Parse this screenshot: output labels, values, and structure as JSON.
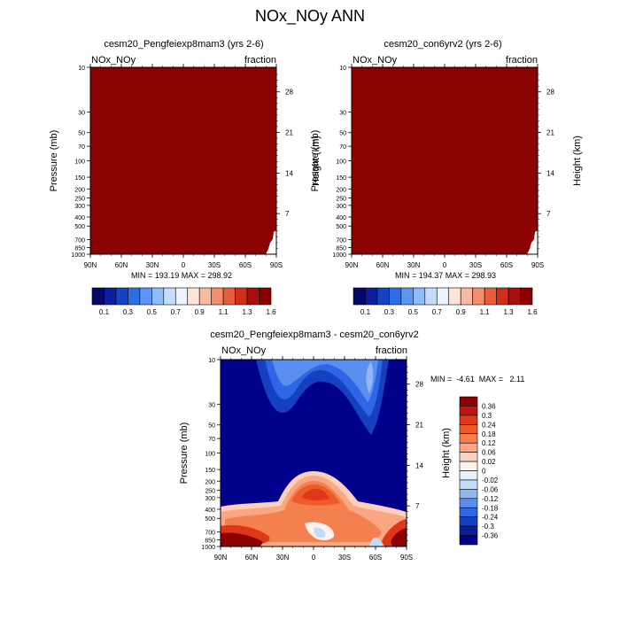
{
  "page_title": "NOx_NOy ANN",
  "colors": {
    "dark_red": "#8b0000",
    "deep_blue": "#00008b"
  },
  "chart_data": [
    {
      "type": "heatmap",
      "title": "cesm20_Pengfeiexp8mam3 (yrs 2-6)",
      "left_label": "NOx_NOy",
      "right_label": "fraction",
      "ylabel": "Pressure (mb)",
      "ylabel_right": "Height (km)",
      "x_ticks": [
        "90N",
        "60N",
        "30N",
        "0",
        "30S",
        "60S",
        "90S"
      ],
      "y_ticks": [
        10,
        30,
        50,
        70,
        100,
        150,
        200,
        250,
        300,
        400,
        500,
        700,
        850,
        1000
      ],
      "y_ticks_right": [
        28,
        21,
        14,
        7
      ],
      "stats": "MIN = 193.19  MAX = 298.92",
      "fill": "field entirely in top color class (>1.6)",
      "colorbar": {
        "levels": [
          "0.1",
          "0.3",
          "0.5",
          "0.7",
          "0.9",
          "1.1",
          "1.3",
          "1.6"
        ],
        "colors": [
          "#08086b",
          "#0a1fa0",
          "#1642c8",
          "#2f6de6",
          "#5b95f5",
          "#8dbcfa",
          "#c3dcfb",
          "#eef3fb",
          "#fde6d8",
          "#f9bba0",
          "#f28e6e",
          "#e95c3c",
          "#d0301a",
          "#a8100d",
          "#8b0000"
        ]
      }
    },
    {
      "type": "heatmap",
      "title": "cesm20_con6yrv2 (yrs 2-6)",
      "left_label": "NOx_NOy",
      "right_label": "fraction",
      "ylabel": "Pressure (mb)",
      "ylabel_right": "Height (km)",
      "x_ticks": [
        "90N",
        "60N",
        "30N",
        "0",
        "30S",
        "60S",
        "90S"
      ],
      "y_ticks": [
        10,
        30,
        50,
        70,
        100,
        150,
        200,
        250,
        300,
        400,
        500,
        700,
        850,
        1000
      ],
      "y_ticks_right": [
        28,
        21,
        14,
        7
      ],
      "stats": "MIN = 194.37  MAX = 298.93",
      "fill": "field entirely in top color class (>1.6)",
      "colorbar": {
        "levels": [
          "0.1",
          "0.3",
          "0.5",
          "0.7",
          "0.9",
          "1.1",
          "1.3",
          "1.6"
        ],
        "colors": [
          "#08086b",
          "#0a1fa0",
          "#1642c8",
          "#2f6de6",
          "#5b95f5",
          "#8dbcfa",
          "#c3dcfb",
          "#eef3fb",
          "#fde6d8",
          "#f9bba0",
          "#f28e6e",
          "#e95c3c",
          "#d0301a",
          "#a8100d",
          "#8b0000"
        ]
      }
    },
    {
      "type": "heatmap",
      "title": "cesm20_Pengfeiexp8mam3 - cesm20_con6yrv2",
      "left_label": "NOx_NOy",
      "right_label": "fraction",
      "ylabel": "Pressure (mb)",
      "ylabel_right": "Height (km)",
      "x_ticks": [
        "90N",
        "60N",
        "30N",
        "0",
        "30S",
        "60S",
        "90S"
      ],
      "y_ticks": [
        10,
        30,
        50,
        70,
        100,
        150,
        200,
        250,
        300,
        400,
        500,
        700,
        850,
        1000
      ],
      "y_ticks_right": [
        28,
        21,
        14,
        7
      ],
      "stats": "MIN =  -4.61  MAX =   2.11",
      "colorbar": {
        "levels": [
          "0.36",
          "0.3",
          "0.24",
          "0.18",
          "0.12",
          "0.06",
          "0.02",
          "0",
          "-0.02",
          "-0.06",
          "-0.12",
          "-0.18",
          "-0.24",
          "-0.3",
          "-0.36"
        ],
        "colors": [
          "#8b0000",
          "#c0160c",
          "#de3818",
          "#ef5a2a",
          "#f5804f",
          "#f9a783",
          "#fcd0bd",
          "#fff2ec",
          "#e6f0fb",
          "#c2dbf8",
          "#8fb8f3",
          "#5a8ff0",
          "#2f66e6",
          "#1640c2",
          "#0c1d9c",
          "#00008b"
        ]
      }
    }
  ]
}
